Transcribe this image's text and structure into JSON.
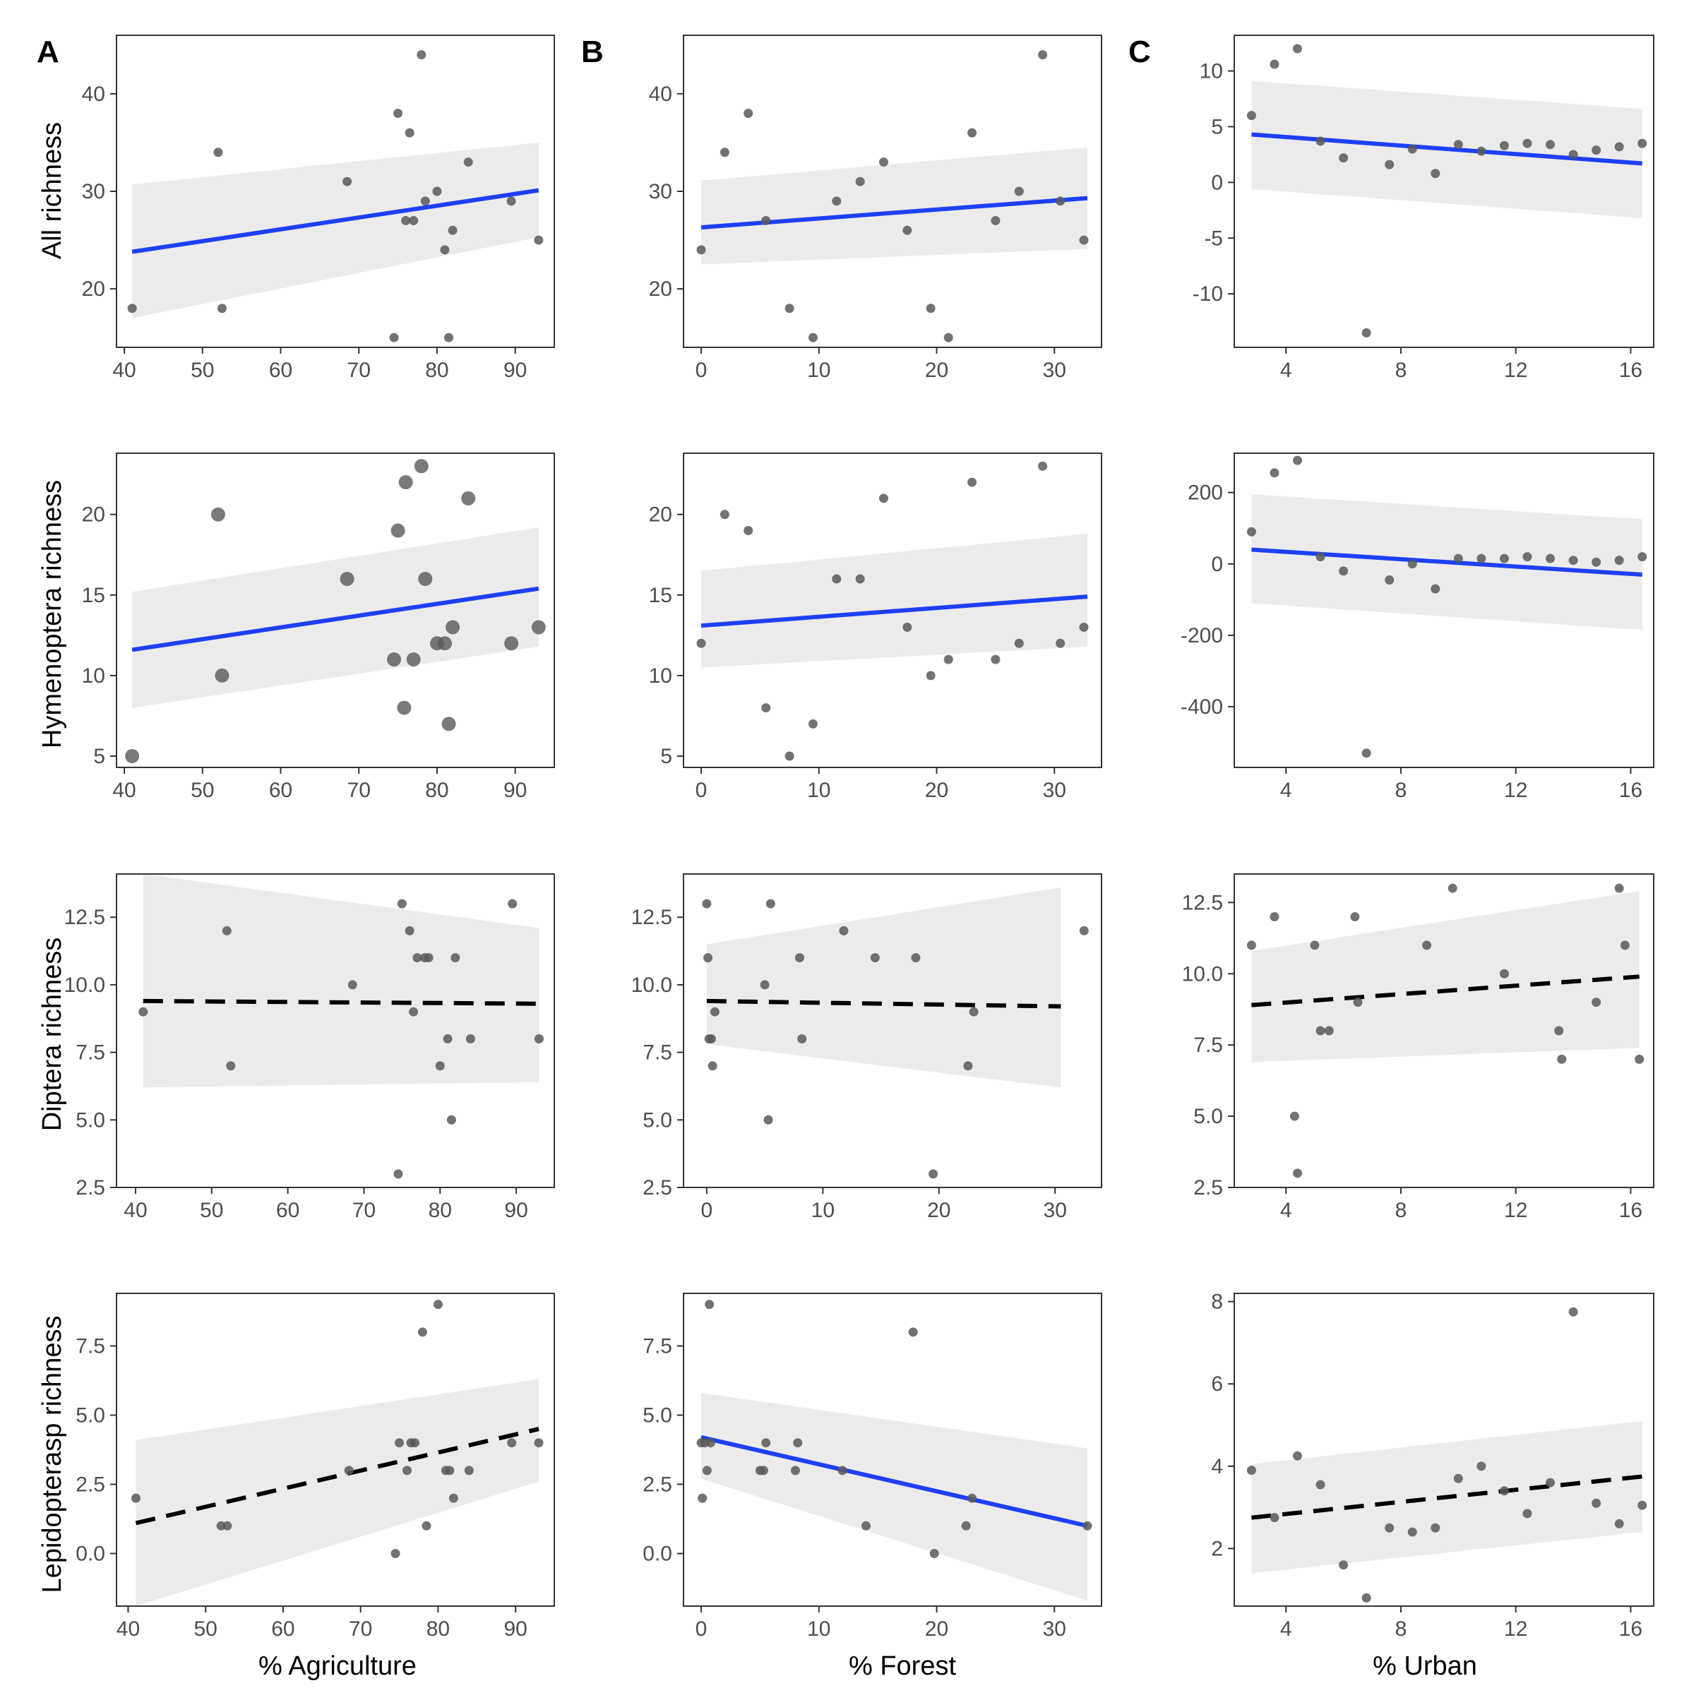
{
  "figure": {
    "panel_labels": [
      "A",
      "B",
      "C"
    ],
    "column_xlabels": [
      "% Agriculture",
      "% Forest",
      "% Urban"
    ],
    "row_ylabels": [
      "All richness",
      "Hymenoptera richness",
      "Diptera richness",
      "Lepidopterasp richness"
    ]
  },
  "chart_data": [
    {
      "type": "scatter",
      "row": 0,
      "col": 0,
      "title": "",
      "xlabel": "",
      "ylabel": "All richness",
      "xlim": [
        39,
        95
      ],
      "ylim": [
        14,
        46
      ],
      "xticks": [
        40,
        50,
        60,
        70,
        80,
        90
      ],
      "yticks": [
        20,
        30,
        40
      ],
      "x": [
        41,
        52,
        52.5,
        68.5,
        74.5,
        75,
        76,
        76.5,
        77,
        78,
        78.5,
        80,
        81,
        81.5,
        82,
        84,
        89.5,
        93
      ],
      "y": [
        18,
        34,
        18,
        31,
        15,
        38,
        27,
        36,
        27,
        44,
        29,
        30,
        24,
        15,
        26,
        33,
        29,
        25
      ],
      "point_size": "small",
      "fit": {
        "x": [
          41,
          93
        ],
        "y": [
          23.8,
          30.1
        ],
        "style": "solid",
        "ci_lower": [
          17,
          25.3
        ],
        "ci_upper": [
          30.7,
          35
        ]
      }
    },
    {
      "type": "scatter",
      "row": 0,
      "col": 1,
      "title": "",
      "xlabel": "",
      "ylabel": "",
      "xlim": [
        -1.5,
        34
      ],
      "ylim": [
        14,
        46
      ],
      "xticks": [
        0,
        10,
        20,
        30
      ],
      "yticks": [
        20,
        30,
        40
      ],
      "x": [
        0,
        2,
        4,
        5.5,
        7.5,
        9.5,
        11.5,
        13.5,
        15.5,
        17.5,
        19.5,
        21,
        23,
        25,
        27,
        29,
        30.5,
        32.5
      ],
      "y": [
        24,
        34,
        38,
        27,
        18,
        15,
        29,
        31,
        33,
        26,
        18,
        15,
        36,
        27,
        30,
        44,
        29,
        25
      ],
      "point_size": "small",
      "fit": {
        "x": [
          0,
          32.8
        ],
        "y": [
          26.3,
          29.3
        ],
        "style": "solid",
        "ci_lower": [
          22.5,
          24.1
        ],
        "ci_upper": [
          31.1,
          34.5
        ]
      }
    },
    {
      "type": "scatter",
      "row": 0,
      "col": 2,
      "title": "",
      "xlabel": "",
      "ylabel": "",
      "xlim": [
        2.2,
        16.8
      ],
      "ylim": [
        -14.8,
        13.2
      ],
      "xticks": [
        4,
        8,
        12,
        16
      ],
      "yticks": [
        -10,
        -5,
        0,
        5,
        10
      ],
      "x": [
        2.8,
        3.6,
        4.4,
        5.2,
        6,
        6.8,
        7.6,
        8.4,
        9.2,
        10,
        10.8,
        11.6,
        12.4,
        13.2,
        14,
        14.8,
        15.6,
        16.4
      ],
      "y": [
        6,
        10.6,
        12,
        3.7,
        2.2,
        -13.5,
        1.6,
        3,
        0.8,
        3.4,
        2.8,
        3.3,
        3.5,
        3.4,
        2.5,
        2.9,
        3.2,
        3.5
      ],
      "point_size": "small",
      "fit": {
        "x": [
          2.8,
          16.4
        ],
        "y": [
          4.3,
          1.7
        ],
        "style": "solid",
        "ci_lower": [
          -0.6,
          -3.2
        ],
        "ci_upper": [
          9.1,
          6.6
        ]
      }
    },
    {
      "type": "scatter",
      "row": 1,
      "col": 0,
      "title": "",
      "xlabel": "",
      "ylabel": "Hymenoptera richness",
      "xlim": [
        39,
        95
      ],
      "ylim": [
        4.3,
        23.8
      ],
      "xticks": [
        40,
        50,
        60,
        70,
        80,
        90
      ],
      "yticks": [
        5,
        10,
        15,
        20
      ],
      "x": [
        41,
        52,
        52.5,
        68.5,
        74.5,
        75,
        75.8,
        76,
        77,
        78,
        78.5,
        80,
        81,
        81.5,
        82,
        84,
        89.5,
        93
      ],
      "y": [
        5,
        20,
        10,
        16,
        11,
        19,
        8,
        22,
        11,
        23,
        16,
        12,
        12,
        7,
        13,
        21,
        12,
        13
      ],
      "point_size": "large",
      "fit": {
        "x": [
          41,
          93
        ],
        "y": [
          11.6,
          15.4
        ],
        "style": "solid",
        "ci_lower": [
          8,
          11.8
        ],
        "ci_upper": [
          15.2,
          19.2
        ]
      }
    },
    {
      "type": "scatter",
      "row": 1,
      "col": 1,
      "title": "",
      "xlabel": "",
      "ylabel": "",
      "xlim": [
        -1.5,
        34
      ],
      "ylim": [
        4.3,
        23.8
      ],
      "xticks": [
        0,
        10,
        20,
        30
      ],
      "yticks": [
        5,
        10,
        15,
        20
      ],
      "x": [
        0,
        2,
        4,
        5.5,
        7.5,
        9.5,
        11.5,
        13.5,
        15.5,
        17.5,
        19.5,
        21,
        23,
        25,
        27,
        29,
        30.5,
        32.5
      ],
      "y": [
        12,
        20,
        19,
        8,
        5,
        7,
        16,
        16,
        21,
        13,
        10,
        11,
        22,
        11,
        12,
        23,
        12,
        13
      ],
      "point_size": "small",
      "fit": {
        "x": [
          0,
          32.8
        ],
        "y": [
          13.1,
          14.9
        ],
        "style": "solid",
        "ci_lower": [
          10.5,
          11.8
        ],
        "ci_upper": [
          16.5,
          18.8
        ]
      }
    },
    {
      "type": "scatter",
      "row": 1,
      "col": 2,
      "title": "",
      "xlabel": "",
      "ylabel": "",
      "xlim": [
        2.2,
        16.8
      ],
      "ylim": [
        -570,
        310
      ],
      "xticks": [
        4,
        8,
        12,
        16
      ],
      "yticks": [
        -400,
        -200,
        0,
        200
      ],
      "x": [
        2.8,
        3.6,
        4.4,
        5.2,
        6,
        6.8,
        7.6,
        8.4,
        9.2,
        10,
        10.8,
        11.6,
        12.4,
        13.2,
        14,
        14.8,
        15.6,
        16.4
      ],
      "y": [
        90,
        255,
        290,
        20,
        -20,
        -530,
        -45,
        0,
        -70,
        15,
        15,
        15,
        20,
        15,
        10,
        5,
        10,
        20
      ],
      "point_size": "small",
      "fit": {
        "x": [
          2.8,
          16.4
        ],
        "y": [
          40,
          -30
        ],
        "style": "solid",
        "ci_lower": [
          -110,
          -185
        ],
        "ci_upper": [
          195,
          125
        ]
      }
    },
    {
      "type": "scatter",
      "row": 2,
      "col": 0,
      "title": "",
      "xlabel": "",
      "ylabel": "Diptera richness",
      "xlim": [
        37.5,
        95
      ],
      "ylim": [
        2.5,
        14.1
      ],
      "xticks": [
        40,
        50,
        60,
        70,
        80,
        90
      ],
      "yticks": [
        2.5,
        5.0,
        7.5,
        10.0,
        12.5
      ],
      "x": [
        41,
        52,
        52.5,
        68.5,
        74.5,
        75,
        76,
        76.5,
        77,
        78,
        78.5,
        80,
        81,
        81.5,
        82,
        84,
        89.5,
        93
      ],
      "y": [
        9,
        12,
        7,
        10,
        3,
        13,
        12,
        9,
        11,
        11,
        11,
        7,
        8,
        5,
        11,
        8,
        13,
        8
      ],
      "point_size": "small",
      "fit": {
        "x": [
          41,
          93
        ],
        "y": [
          9.4,
          9.3
        ],
        "style": "dashed",
        "ci_lower": [
          6.2,
          6.4
        ],
        "ci_upper": [
          14.1,
          12.1
        ]
      }
    },
    {
      "type": "scatter",
      "row": 2,
      "col": 1,
      "title": "",
      "xlabel": "",
      "ylabel": "",
      "xlim": [
        -2,
        34
      ],
      "ylim": [
        2.5,
        14.1
      ],
      "xticks": [
        0,
        10,
        20,
        30
      ],
      "yticks": [
        2.5,
        5.0,
        7.5,
        10.0,
        12.5
      ],
      "x": [
        0,
        0.1,
        0.2,
        0.4,
        0.5,
        0.7,
        5,
        5.3,
        5.5,
        8,
        8.2,
        11.8,
        14.5,
        18,
        19.5,
        22.5,
        23,
        32.5
      ],
      "y": [
        13,
        11,
        8,
        8,
        7,
        9,
        10,
        5,
        13,
        11,
        8,
        12,
        11,
        11,
        3,
        7,
        9,
        12
      ],
      "point_size": "small",
      "fit": {
        "x": [
          0,
          30.5
        ],
        "y": [
          9.4,
          9.2
        ],
        "style": "dashed",
        "ci_lower": [
          7.8,
          6.2
        ],
        "ci_upper": [
          11.5,
          13.6
        ]
      }
    },
    {
      "type": "scatter",
      "row": 2,
      "col": 2,
      "title": "",
      "xlabel": "",
      "ylabel": "",
      "xlim": [
        2.2,
        16.8
      ],
      "ylim": [
        2.5,
        13.5
      ],
      "xticks": [
        4,
        8,
        12,
        16
      ],
      "yticks": [
        2.5,
        5.0,
        7.5,
        10.0,
        12.5
      ],
      "x": [
        2.8,
        3.6,
        4.3,
        4.4,
        5,
        5.2,
        5.5,
        6.4,
        6.5,
        8.9,
        9.8,
        11.6,
        13.5,
        13.6,
        14.8,
        15.6,
        15.8,
        16.3
      ],
      "y": [
        11,
        12,
        5,
        3,
        11,
        8,
        8,
        12,
        9,
        11,
        13,
        10,
        8,
        7,
        9,
        13,
        11,
        7
      ],
      "point_size": "small",
      "fit": {
        "x": [
          2.8,
          16.3
        ],
        "y": [
          8.9,
          9.9
        ],
        "style": "dashed",
        "ci_lower": [
          6.9,
          7.4
        ],
        "ci_upper": [
          10.8,
          12.9
        ]
      }
    },
    {
      "type": "scatter",
      "row": 3,
      "col": 0,
      "title": "",
      "xlabel": "% Agriculture",
      "ylabel": "Lepidopterasp richness",
      "xlim": [
        38.5,
        95
      ],
      "ylim": [
        -1.9,
        9.4
      ],
      "xticks": [
        40,
        50,
        60,
        70,
        80,
        90
      ],
      "yticks": [
        0.0,
        2.5,
        5.0,
        7.5
      ],
      "x": [
        41,
        52,
        52.8,
        68.5,
        74.5,
        75,
        76,
        76.5,
        77,
        78,
        78.5,
        80,
        81,
        81.5,
        82,
        84,
        89.5,
        93
      ],
      "y": [
        2,
        1,
        1,
        3,
        0,
        4,
        3,
        4,
        4,
        8,
        1,
        9,
        3,
        3,
        2,
        3,
        4,
        4
      ],
      "point_size": "small",
      "fit": {
        "x": [
          41,
          93
        ],
        "y": [
          1.1,
          4.5
        ],
        "style": "dashed",
        "ci_lower": [
          -1.9,
          2.6
        ],
        "ci_upper": [
          4.1,
          6.3
        ]
      }
    },
    {
      "type": "scatter",
      "row": 3,
      "col": 1,
      "title": "",
      "xlabel": "% Forest",
      "ylabel": "",
      "xlim": [
        -1.5,
        34
      ],
      "ylim": [
        -1.9,
        9.4
      ],
      "xticks": [
        0,
        10,
        20,
        30
      ],
      "yticks": [
        0.0,
        2.5,
        5.0,
        7.5
      ],
      "x": [
        0,
        0.1,
        0.3,
        0.5,
        0.7,
        0.8,
        5,
        5.3,
        5.5,
        8,
        8.2,
        12,
        14,
        18,
        19.8,
        22.5,
        23,
        32.8
      ],
      "y": [
        4,
        2,
        4,
        3,
        9,
        4,
        3,
        3,
        4,
        3,
        4,
        3,
        1,
        8,
        0,
        1,
        2,
        1
      ],
      "point_size": "small",
      "fit": {
        "x": [
          0,
          32.8
        ],
        "y": [
          4.2,
          1.0
        ],
        "style": "solid",
        "ci_lower": [
          2.7,
          -1.7
        ],
        "ci_upper": [
          5.8,
          3.8
        ]
      }
    },
    {
      "type": "scatter",
      "row": 3,
      "col": 2,
      "title": "",
      "xlabel": "% Urban",
      "ylabel": "",
      "xlim": [
        2.2,
        16.8
      ],
      "ylim": [
        0.6,
        8.2
      ],
      "xticks": [
        4,
        8,
        12,
        16
      ],
      "yticks": [
        2,
        4,
        6,
        8
      ],
      "x": [
        2.8,
        3.6,
        4.4,
        5.2,
        6,
        6.8,
        7.6,
        8.4,
        9.2,
        10,
        10.8,
        11.6,
        12.4,
        13.2,
        14,
        14.8,
        15.6,
        16.4
      ],
      "y": [
        3.9,
        2.75,
        4.25,
        3.55,
        1.6,
        0.8,
        2.5,
        2.4,
        2.5,
        3.7,
        4,
        3.4,
        2.85,
        3.6,
        7.75,
        3.1,
        2.6,
        3.05
      ],
      "point_size": "small",
      "fit": {
        "x": [
          2.8,
          16.4
        ],
        "y": [
          2.75,
          3.75
        ],
        "style": "dashed",
        "ci_lower": [
          1.4,
          2.4
        ],
        "ci_upper": [
          4.05,
          5.1
        ]
      }
    }
  ]
}
